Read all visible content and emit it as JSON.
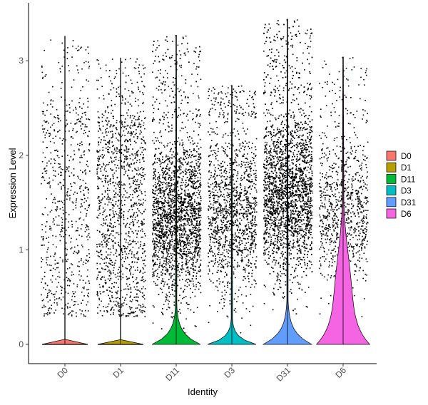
{
  "chart_data": {
    "type": "violin",
    "xlabel": "Identity",
    "ylabel": "Expression Level",
    "ylim": [
      -0.2,
      3.5
    ],
    "yticks": [
      0,
      1,
      2,
      3
    ],
    "grid": false,
    "legend_position": "right",
    "categories": [
      "D0",
      "D1",
      "D11",
      "D3",
      "D31",
      "D6"
    ],
    "colors": [
      "#F8766D",
      "#B79F00",
      "#00BA38",
      "#00BFC4",
      "#619CFF",
      "#F564E3"
    ],
    "series": [
      {
        "name": "D0",
        "max": 3.26,
        "nonzero_range": [
          0.3,
          2.6
        ],
        "violin_peak": 0
      },
      {
        "name": "D1",
        "max": 3.03,
        "nonzero_range": [
          0.3,
          2.45
        ],
        "violin_peak": 0
      },
      {
        "name": "D11",
        "max": 3.27,
        "nonzero_range": [
          0.1,
          2.3
        ],
        "violin_peak": 0
      },
      {
        "name": "D3",
        "max": 2.74,
        "nonzero_range": [
          0.1,
          2.4
        ],
        "violin_peak": 0
      },
      {
        "name": "D31",
        "max": 3.44,
        "nonzero_range": [
          0.3,
          2.6
        ],
        "violin_peak": 0
      },
      {
        "name": "D6",
        "max": 3.04,
        "nonzero_range": [
          0.2,
          2.35
        ],
        "violin_peak": 0
      }
    ]
  }
}
